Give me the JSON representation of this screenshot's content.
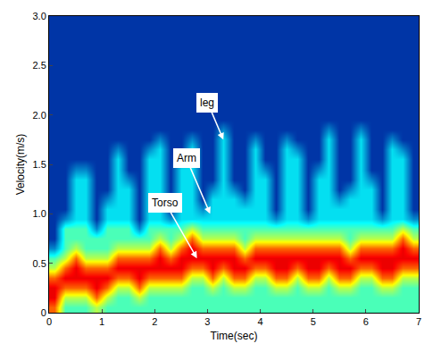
{
  "chart_data": {
    "type": "heatmap",
    "x_label": "Time(sec)",
    "y_label": "Velocity(m/s)",
    "color": "Jet",
    "xlim": [
      0,
      7
    ],
    "ylim": [
      0,
      3
    ],
    "xticks": [
      0,
      1,
      2,
      3,
      4,
      5,
      6,
      7
    ],
    "yticks": [
      0,
      0.5,
      {
        "value": 1,
        "label": "1.0"
      },
      1.5,
      {
        "value": 2,
        "label": "2.0"
      },
      2.5,
      {
        "value": 3,
        "label": "3.0"
      }
    ],
    "zlim": [
      0,
      9
    ],
    "x": [
      0.1,
      0.3,
      0.5,
      0.7,
      0.9,
      1.1,
      1.3,
      1.5,
      1.7,
      1.9,
      2.1,
      2.3,
      2.5,
      2.7,
      2.9,
      3.1,
      3.3,
      3.5,
      3.7,
      3.9,
      4.1,
      4.3,
      4.5,
      4.7,
      4.9,
      5.1,
      5.3,
      5.5,
      5.7,
      5.9,
      6.1,
      6.3,
      6.5,
      6.7,
      6.9
    ],
    "y": [
      0.05,
      0.15,
      0.25,
      0.35,
      0.45,
      0.55,
      0.65,
      0.75,
      0.85,
      0.95,
      1.05,
      1.15,
      1.25,
      1.35,
      1.45,
      1.55,
      1.65,
      1.75,
      1.85,
      1.95,
      2.05,
      2.15,
      2.25,
      2.35,
      2.45,
      2.55,
      2.65,
      2.75,
      2.85,
      2.95
    ],
    "z": [
      [
        7,
        4,
        4,
        4,
        5,
        4,
        4,
        4,
        4,
        4,
        4,
        4,
        4,
        4,
        4,
        4,
        4,
        4,
        4,
        4,
        4,
        4,
        4,
        4,
        4,
        4,
        4,
        4,
        4,
        4,
        4,
        4,
        4,
        4,
        4
      ],
      [
        8,
        5,
        5,
        5,
        7,
        5,
        4,
        4,
        5,
        4,
        4,
        4,
        4,
        4,
        4,
        4,
        4,
        4,
        4,
        4,
        4,
        4,
        4,
        4,
        4,
        4,
        4,
        4,
        4,
        4,
        4,
        4,
        4,
        4,
        4
      ],
      [
        8,
        7,
        7,
        7,
        8,
        7,
        5,
        5,
        7,
        5,
        5,
        5,
        5,
        4,
        4,
        5,
        4,
        5,
        5,
        4,
        4,
        5,
        5,
        4,
        5,
        5,
        4,
        5,
        5,
        4,
        4,
        5,
        5,
        4,
        4
      ],
      [
        7,
        8,
        8,
        8,
        8,
        8,
        7,
        7,
        8,
        7,
        7,
        7,
        7,
        5,
        5,
        7,
        5,
        7,
        7,
        5,
        5,
        7,
        7,
        5,
        7,
        7,
        5,
        7,
        7,
        5,
        5,
        7,
        7,
        5,
        5
      ],
      [
        5,
        7,
        8,
        7,
        7,
        7,
        8,
        8,
        8,
        8,
        8,
        8,
        8,
        7,
        7,
        8,
        7,
        8,
        8,
        7,
        7,
        8,
        8,
        7,
        8,
        8,
        7,
        8,
        8,
        7,
        7,
        8,
        8,
        7,
        7
      ],
      [
        4,
        5,
        7,
        5,
        5,
        5,
        7,
        7,
        7,
        7,
        8,
        7,
        8,
        8,
        8,
        8,
        8,
        8,
        7,
        8,
        8,
        8,
        8,
        8,
        8,
        8,
        8,
        8,
        7,
        8,
        8,
        8,
        8,
        8,
        8
      ],
      [
        2,
        4,
        5,
        4,
        4,
        4,
        5,
        5,
        5,
        5,
        7,
        5,
        7,
        8,
        7,
        7,
        7,
        7,
        5,
        7,
        7,
        7,
        7,
        7,
        7,
        7,
        7,
        7,
        5,
        7,
        7,
        7,
        7,
        8,
        7
      ],
      [
        1,
        4,
        4,
        4,
        4,
        4,
        4,
        4,
        4,
        4,
        5,
        4,
        5,
        7,
        5,
        5,
        5,
        5,
        4,
        5,
        5,
        5,
        5,
        5,
        5,
        5,
        5,
        5,
        4,
        5,
        5,
        5,
        5,
        7,
        5
      ],
      [
        1,
        4,
        4,
        4,
        2,
        4,
        4,
        4,
        2,
        4,
        4,
        4,
        4,
        5,
        4,
        4,
        4,
        4,
        4,
        4,
        4,
        4,
        4,
        4,
        4,
        4,
        4,
        4,
        4,
        4,
        4,
        4,
        4,
        5,
        4
      ],
      [
        1,
        2,
        3,
        3,
        1,
        3,
        3,
        3,
        1,
        3,
        3,
        2,
        3,
        3,
        3,
        3,
        3,
        3,
        3,
        3,
        3,
        2,
        3,
        3,
        2,
        3,
        3,
        3,
        3,
        3,
        3,
        2,
        3,
        3,
        2
      ],
      [
        1,
        1,
        3,
        3,
        1,
        3,
        3,
        3,
        1,
        3,
        3,
        1,
        3,
        3,
        2,
        3,
        3,
        3,
        3,
        3,
        3,
        1,
        3,
        3,
        1,
        3,
        3,
        3,
        3,
        3,
        3,
        1,
        3,
        3,
        1
      ],
      [
        1,
        1,
        3,
        3,
        1,
        2,
        3,
        3,
        1,
        3,
        3,
        1,
        3,
        3,
        1,
        3,
        3,
        3,
        2,
        3,
        3,
        1,
        3,
        3,
        1,
        3,
        3,
        2,
        3,
        3,
        3,
        1,
        3,
        3,
        1
      ],
      [
        1,
        1,
        3,
        3,
        1,
        1,
        3,
        3,
        1,
        3,
        3,
        1,
        3,
        3,
        1,
        2,
        3,
        2,
        1,
        3,
        3,
        1,
        3,
        3,
        1,
        3,
        3,
        1,
        2,
        3,
        3,
        1,
        3,
        3,
        1
      ],
      [
        1,
        1,
        3,
        3,
        1,
        1,
        3,
        2,
        1,
        3,
        3,
        1,
        3,
        3,
        1,
        1,
        3,
        1,
        1,
        3,
        3,
        1,
        3,
        3,
        1,
        3,
        3,
        1,
        1,
        3,
        2,
        1,
        3,
        3,
        1
      ],
      [
        1,
        1,
        2,
        2,
        1,
        1,
        3,
        1,
        1,
        3,
        3,
        1,
        3,
        3,
        1,
        1,
        3,
        1,
        1,
        3,
        2,
        1,
        3,
        3,
        1,
        2,
        3,
        1,
        1,
        3,
        1,
        1,
        3,
        3,
        1
      ],
      [
        1,
        1,
        1,
        1,
        1,
        1,
        3,
        1,
        1,
        3,
        3,
        1,
        2,
        3,
        1,
        1,
        3,
        1,
        1,
        3,
        1,
        1,
        3,
        3,
        1,
        1,
        3,
        1,
        1,
        3,
        1,
        1,
        3,
        3,
        1
      ],
      [
        1,
        1,
        1,
        1,
        1,
        1,
        2,
        1,
        1,
        2,
        3,
        1,
        1,
        3,
        1,
        1,
        3,
        1,
        1,
        3,
        1,
        1,
        3,
        2,
        1,
        1,
        3,
        1,
        1,
        3,
        1,
        1,
        3,
        2,
        1
      ],
      [
        1,
        1,
        1,
        1,
        1,
        1,
        1,
        1,
        1,
        1,
        2,
        1,
        1,
        2,
        1,
        1,
        3,
        1,
        1,
        2,
        1,
        1,
        2,
        1,
        1,
        1,
        3,
        1,
        1,
        3,
        1,
        1,
        2,
        1,
        1
      ],
      [
        1,
        1,
        1,
        1,
        1,
        1,
        1,
        1,
        1,
        1,
        1,
        1,
        1,
        1,
        1,
        1,
        2,
        1,
        1,
        1,
        1,
        1,
        1,
        1,
        1,
        1,
        2,
        1,
        1,
        2,
        1,
        1,
        1,
        1,
        1
      ],
      [
        1,
        1,
        1,
        1,
        1,
        1,
        1,
        1,
        1,
        1,
        1,
        1,
        1,
        1,
        1,
        1,
        1,
        1,
        1,
        1,
        1,
        1,
        1,
        1,
        1,
        1,
        1,
        1,
        1,
        1,
        1,
        1,
        1,
        1,
        1
      ],
      [
        1,
        1,
        1,
        1,
        1,
        1,
        1,
        1,
        1,
        1,
        1,
        1,
        1,
        1,
        1,
        1,
        1,
        1,
        1,
        1,
        1,
        1,
        1,
        1,
        1,
        1,
        1,
        1,
        1,
        1,
        1,
        1,
        1,
        1,
        1
      ],
      [
        1,
        1,
        1,
        1,
        1,
        1,
        1,
        1,
        1,
        1,
        1,
        1,
        1,
        1,
        1,
        1,
        1,
        1,
        1,
        1,
        1,
        1,
        1,
        1,
        1,
        1,
        1,
        1,
        1,
        1,
        1,
        1,
        1,
        1,
        1
      ],
      [
        1,
        1,
        1,
        1,
        1,
        1,
        1,
        1,
        1,
        1,
        1,
        1,
        1,
        1,
        1,
        1,
        1,
        1,
        1,
        1,
        1,
        1,
        1,
        1,
        1,
        1,
        1,
        1,
        1,
        1,
        1,
        1,
        1,
        1,
        1
      ],
      [
        1,
        1,
        1,
        1,
        1,
        1,
        1,
        1,
        1,
        1,
        1,
        1,
        1,
        1,
        1,
        1,
        1,
        1,
        1,
        1,
        1,
        1,
        1,
        1,
        1,
        1,
        1,
        1,
        1,
        1,
        1,
        1,
        1,
        1,
        1
      ],
      [
        1,
        1,
        1,
        1,
        1,
        1,
        1,
        1,
        1,
        1,
        1,
        1,
        1,
        1,
        1,
        1,
        1,
        1,
        1,
        1,
        1,
        1,
        1,
        1,
        1,
        1,
        1,
        1,
        1,
        1,
        1,
        1,
        1,
        1,
        1
      ],
      [
        1,
        1,
        1,
        1,
        1,
        1,
        1,
        1,
        1,
        1,
        1,
        1,
        1,
        1,
        1,
        1,
        1,
        1,
        1,
        1,
        1,
        1,
        1,
        1,
        1,
        1,
        1,
        1,
        1,
        1,
        1,
        1,
        1,
        1,
        1
      ],
      [
        1,
        1,
        1,
        1,
        1,
        1,
        1,
        1,
        1,
        1,
        1,
        1,
        1,
        1,
        1,
        1,
        1,
        1,
        1,
        1,
        1,
        1,
        1,
        1,
        1,
        1,
        1,
        1,
        1,
        1,
        1,
        1,
        1,
        1,
        1
      ],
      [
        1,
        1,
        1,
        1,
        1,
        1,
        1,
        1,
        1,
        1,
        1,
        1,
        1,
        1,
        1,
        1,
        1,
        1,
        1,
        1,
        1,
        1,
        1,
        1,
        1,
        1,
        1,
        1,
        1,
        1,
        1,
        1,
        1,
        1,
        1
      ],
      [
        1,
        1,
        1,
        1,
        1,
        1,
        1,
        1,
        1,
        1,
        1,
        1,
        1,
        1,
        1,
        1,
        1,
        1,
        1,
        1,
        1,
        1,
        1,
        1,
        1,
        1,
        1,
        1,
        1,
        1,
        1,
        1,
        1,
        1,
        1
      ],
      [
        1,
        1,
        1,
        1,
        1,
        1,
        1,
        1,
        1,
        1,
        1,
        1,
        1,
        1,
        1,
        1,
        1,
        1,
        1,
        1,
        1,
        1,
        1,
        1,
        1,
        1,
        1,
        1,
        1,
        1,
        1,
        1,
        1,
        1,
        1
      ]
    ],
    "annotations": [
      {
        "text": "leg",
        "x": 3.3,
        "y": 1.75
      },
      {
        "text": "Arm",
        "x": 3.05,
        "y": 1.0
      },
      {
        "text": "Torso",
        "x": 2.8,
        "y": 0.55
      }
    ]
  }
}
